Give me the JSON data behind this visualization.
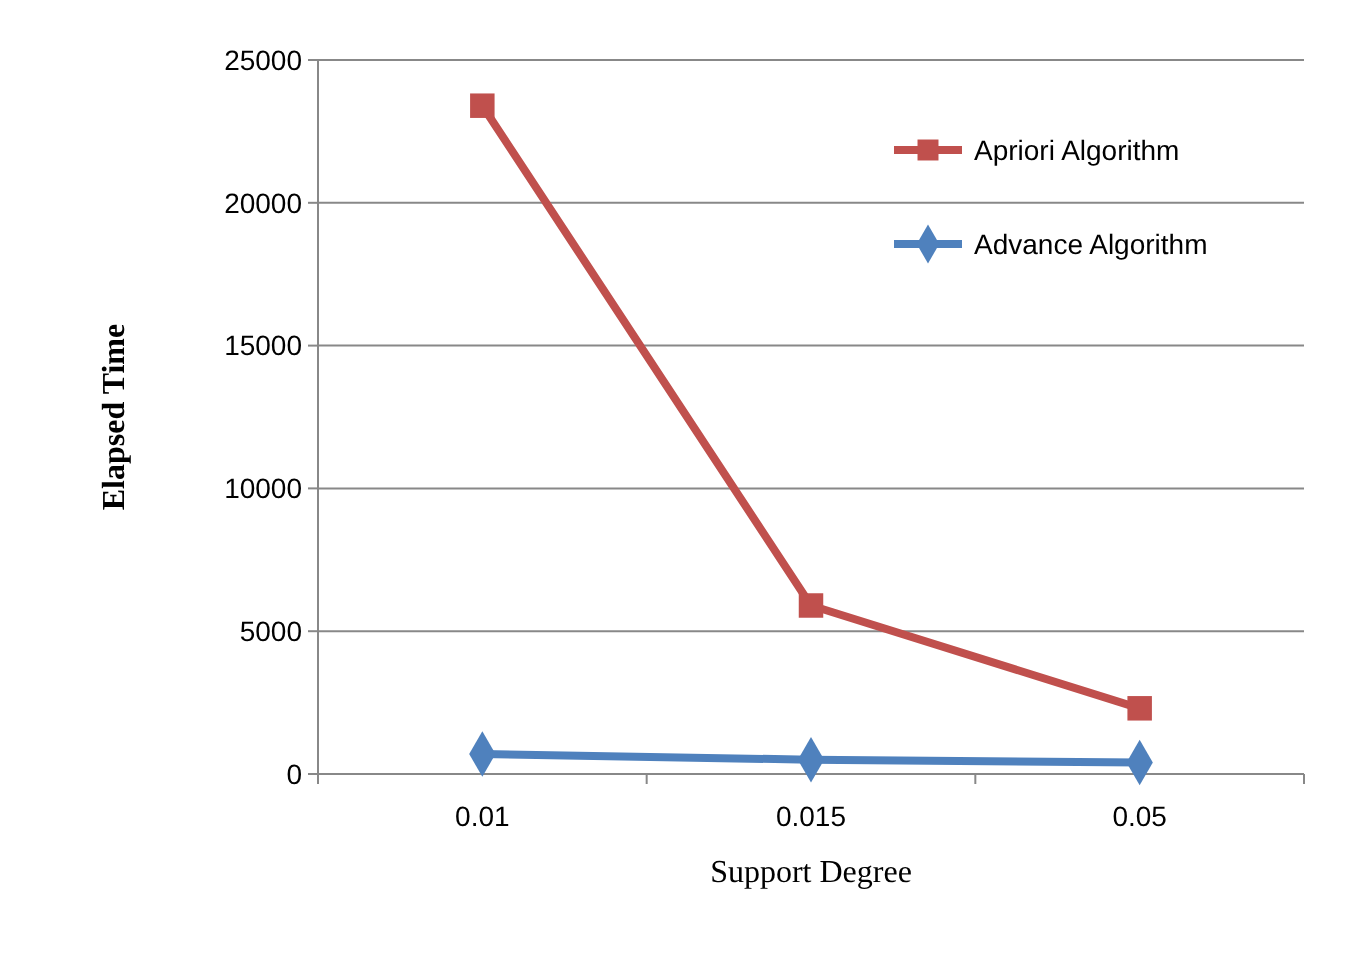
{
  "chart_data": {
    "type": "line",
    "xlabel": "Support Degree",
    "ylabel": "Elapsed Time",
    "categories": [
      "0.01",
      "0.015",
      "0.05"
    ],
    "series": [
      {
        "name": "Apriori Algorithm",
        "color": "#c0504d",
        "marker": "square",
        "values": [
          23400,
          5900,
          2300
        ]
      },
      {
        "name": "Advance Algorithm",
        "color": "#4f81bd",
        "marker": "diamond",
        "values": [
          700,
          500,
          400
        ]
      }
    ],
    "ylim": [
      0,
      25000
    ],
    "yticks": [
      0,
      5000,
      10000,
      15000,
      20000,
      25000
    ],
    "grid": "y",
    "legend": "top right"
  }
}
